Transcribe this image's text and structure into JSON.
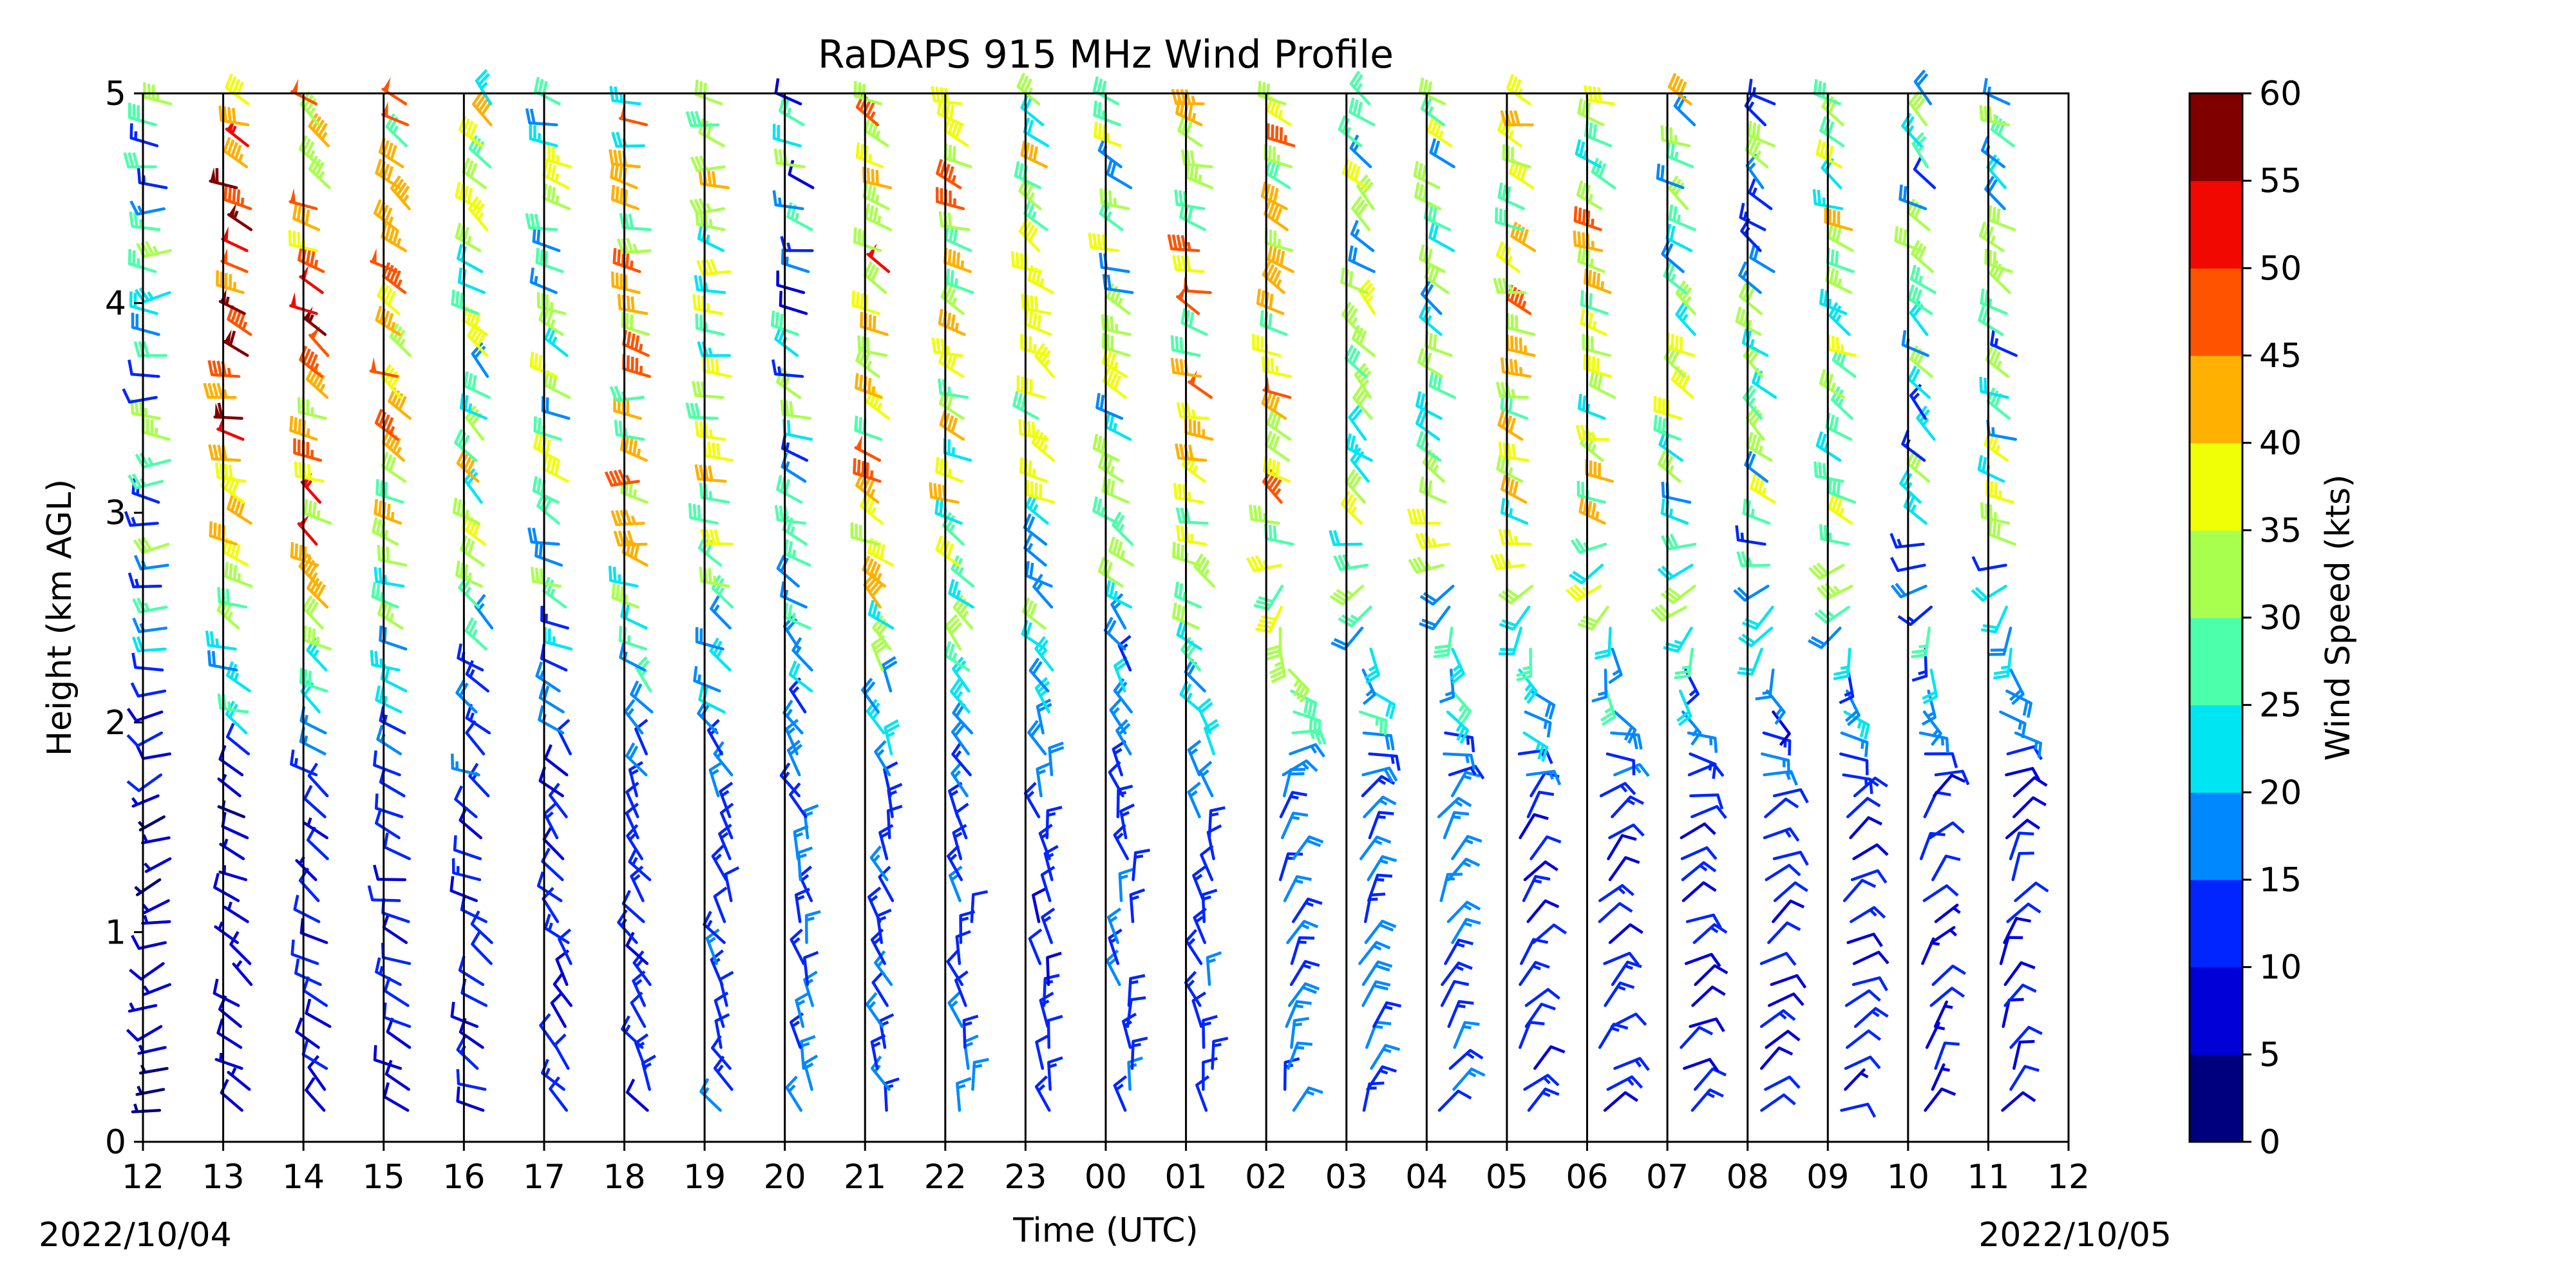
{
  "chart_data": {
    "type": "wind-barb-profile",
    "title": "RaDAPS 915 MHz Wind Profile",
    "xlabel": "Time (UTC)",
    "ylabel": "Height (km AGL)",
    "ylim": [
      0,
      5
    ],
    "yticks": [
      "0",
      "1",
      "2",
      "3",
      "4",
      "5"
    ],
    "xticks": [
      "12",
      "13",
      "14",
      "15",
      "16",
      "17",
      "18",
      "19",
      "20",
      "21",
      "22",
      "23",
      "00",
      "01",
      "02",
      "03",
      "04",
      "05",
      "06",
      "07",
      "08",
      "09",
      "10",
      "11",
      "12"
    ],
    "date_start": "2022/10/04",
    "date_end": "2022/10/05",
    "colorbar": {
      "label": "Wind Speed (kts)",
      "ticks": [
        "0",
        "5",
        "10",
        "15",
        "20",
        "25",
        "30",
        "35",
        "40",
        "45",
        "50",
        "55",
        "60"
      ],
      "colors": [
        "#00007f",
        "#0000d7",
        "#0025ff",
        "#0089ff",
        "#00e5f2",
        "#4cffaa",
        "#a9ff4d",
        "#f0fe06",
        "#ffb000",
        "#ff5300",
        "#f10800",
        "#800000"
      ]
    },
    "profiles": [
      {
        "time": "12",
        "low_speed": 6,
        "low_dir": 250,
        "high_speed": 24,
        "high_dir": 270
      },
      {
        "time": "13",
        "low_speed": 7,
        "low_dir": 300,
        "high_speed": 48,
        "high_dir": 290
      },
      {
        "time": "14",
        "low_speed": 9,
        "low_dir": 310,
        "high_speed": 45,
        "high_dir": 300
      },
      {
        "time": "15",
        "low_speed": 10,
        "low_dir": 290,
        "high_speed": 38,
        "high_dir": 300
      },
      {
        "time": "16",
        "low_speed": 11,
        "low_dir": 300,
        "high_speed": 30,
        "high_dir": 310
      },
      {
        "time": "17",
        "low_speed": 11,
        "low_dir": 320,
        "high_speed": 28,
        "high_dir": 290
      },
      {
        "time": "18",
        "low_speed": 12,
        "low_dir": 330,
        "high_speed": 36,
        "high_dir": 280
      },
      {
        "time": "19",
        "low_speed": 13,
        "low_dir": 330,
        "high_speed": 32,
        "high_dir": 280
      },
      {
        "time": "20",
        "low_speed": 14,
        "low_dir": 340,
        "high_speed": 20,
        "high_dir": 290
      },
      {
        "time": "21",
        "low_speed": 14,
        "low_dir": 340,
        "high_speed": 40,
        "high_dir": 300
      },
      {
        "time": "22",
        "low_speed": 13,
        "low_dir": 345,
        "high_speed": 35,
        "high_dir": 290
      },
      {
        "time": "23",
        "low_speed": 12,
        "low_dir": 345,
        "high_speed": 30,
        "high_dir": 300
      },
      {
        "time": "00",
        "low_speed": 14,
        "low_dir": 350,
        "high_speed": 28,
        "high_dir": 290
      },
      {
        "time": "01",
        "low_speed": 13,
        "low_dir": 345,
        "high_speed": 38,
        "high_dir": 290
      },
      {
        "time": "02",
        "low_speed": 16,
        "low_dir": 20,
        "high_speed": 40,
        "high_dir": 300
      },
      {
        "time": "03",
        "low_speed": 16,
        "low_dir": 30,
        "high_speed": 28,
        "high_dir": 310
      },
      {
        "time": "04",
        "low_speed": 14,
        "low_dir": 30,
        "high_speed": 30,
        "high_dir": 300
      },
      {
        "time": "05",
        "low_speed": 12,
        "low_dir": 40,
        "high_speed": 36,
        "high_dir": 290
      },
      {
        "time": "06",
        "low_speed": 12,
        "low_dir": 50,
        "high_speed": 34,
        "high_dir": 290
      },
      {
        "time": "07",
        "low_speed": 11,
        "low_dir": 60,
        "high_speed": 30,
        "high_dir": 300
      },
      {
        "time": "08",
        "low_speed": 11,
        "low_dir": 60,
        "high_speed": 25,
        "high_dir": 310
      },
      {
        "time": "09",
        "low_speed": 10,
        "low_dir": 60,
        "high_speed": 32,
        "high_dir": 300
      },
      {
        "time": "10",
        "low_speed": 9,
        "low_dir": 40,
        "high_speed": 22,
        "high_dir": 310
      },
      {
        "time": "11",
        "low_speed": 10,
        "low_dir": 30,
        "high_speed": 25,
        "high_dir": 300
      }
    ]
  }
}
